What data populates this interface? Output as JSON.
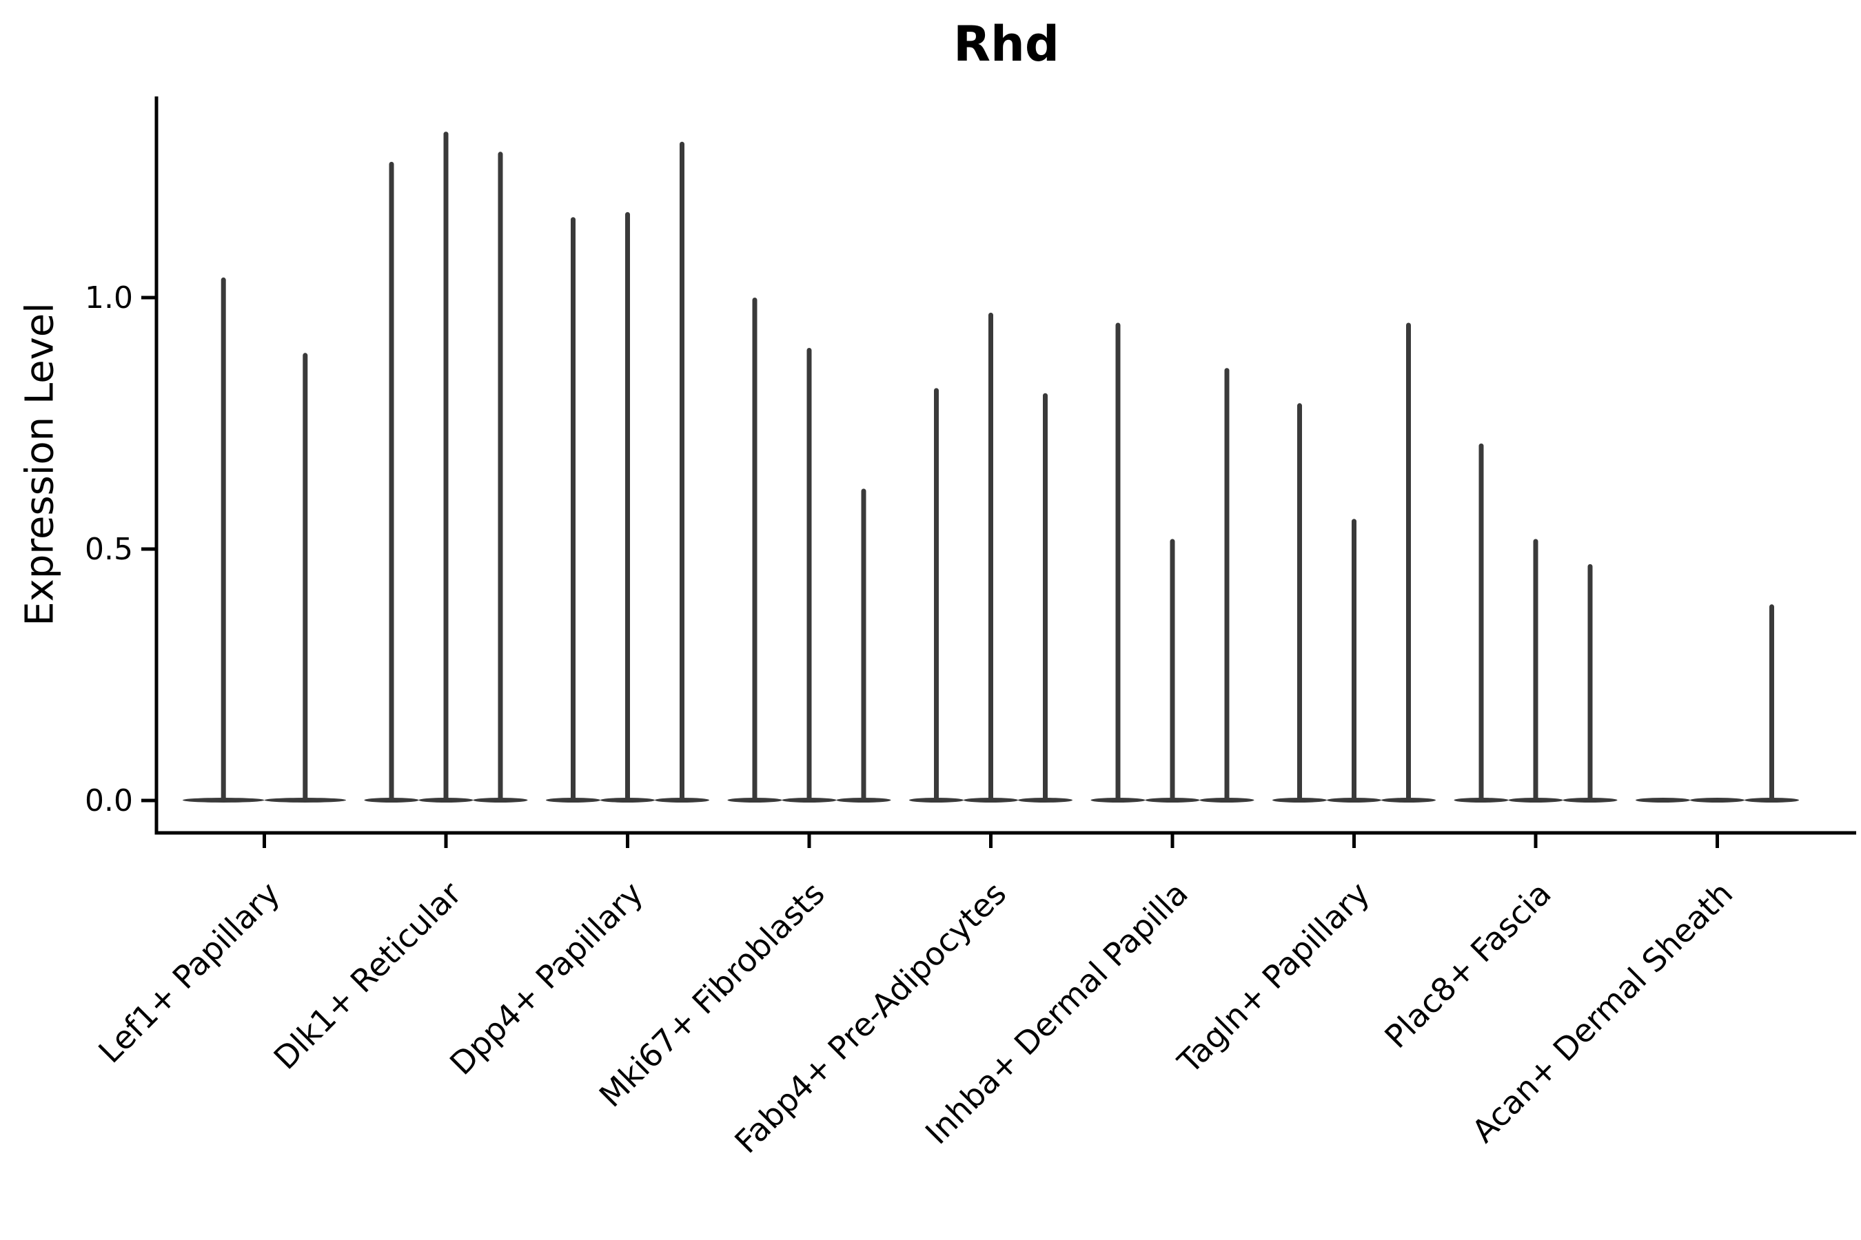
{
  "title": "Rhd",
  "ylabel": "Expression Level",
  "colors": {
    "violin": "#3a3a3a",
    "axis": "#000000",
    "text": "#000000",
    "background": "#ffffff"
  },
  "chart_data": {
    "type": "violin",
    "title": "Rhd",
    "ylabel": "Expression Level",
    "xlabel": "",
    "ylim": [
      -0.065,
      1.4
    ],
    "grid": false,
    "legend": "none",
    "x_tick_rotation": 45,
    "yticks": [
      {
        "label": "0.0",
        "value": 0.0
      },
      {
        "label": "0.5",
        "value": 0.5
      },
      {
        "label": "1.0",
        "value": 1.0
      }
    ],
    "categories": [
      "Lef1+ Papillary",
      "Dlk1+ Reticular",
      "Dpp4+ Papillary",
      "Mki67+ Fibroblasts",
      "Fabp4+ Pre-Adipocytes",
      "Inhba+ Dermal Papilla",
      "Tagln+ Papillary",
      "Plac8+ Fascia",
      "Acan+ Dermal Sheath"
    ],
    "groups": [
      {
        "label": "Lef1+ Papillary",
        "violin_max": [
          1.04,
          0.89
        ]
      },
      {
        "label": "Dlk1+ Reticular",
        "violin_max": [
          1.27,
          1.33,
          1.29
        ]
      },
      {
        "label": "Dpp4+ Papillary",
        "violin_max": [
          1.16,
          1.17,
          1.31
        ]
      },
      {
        "label": "Mki67+ Fibroblasts",
        "violin_max": [
          1.0,
          0.9,
          0.62
        ]
      },
      {
        "label": "Fabp4+ Pre-Adipocytes",
        "violin_max": [
          0.82,
          0.97,
          0.81
        ]
      },
      {
        "label": "Inhba+ Dermal Papilla",
        "violin_max": [
          0.95,
          0.52,
          0.86
        ]
      },
      {
        "label": "Tagln+ Papillary",
        "violin_max": [
          0.79,
          0.56,
          0.95
        ]
      },
      {
        "label": "Plac8+ Fascia",
        "violin_max": [
          0.71,
          0.52,
          0.47
        ]
      },
      {
        "label": "Acan+ Dermal Sheath",
        "violin_max": [
          0.0,
          0.0,
          0.39
        ]
      }
    ],
    "note": "Each group holds thin violins collapsed at 0 with a narrow spike up to the listed max expression value."
  }
}
